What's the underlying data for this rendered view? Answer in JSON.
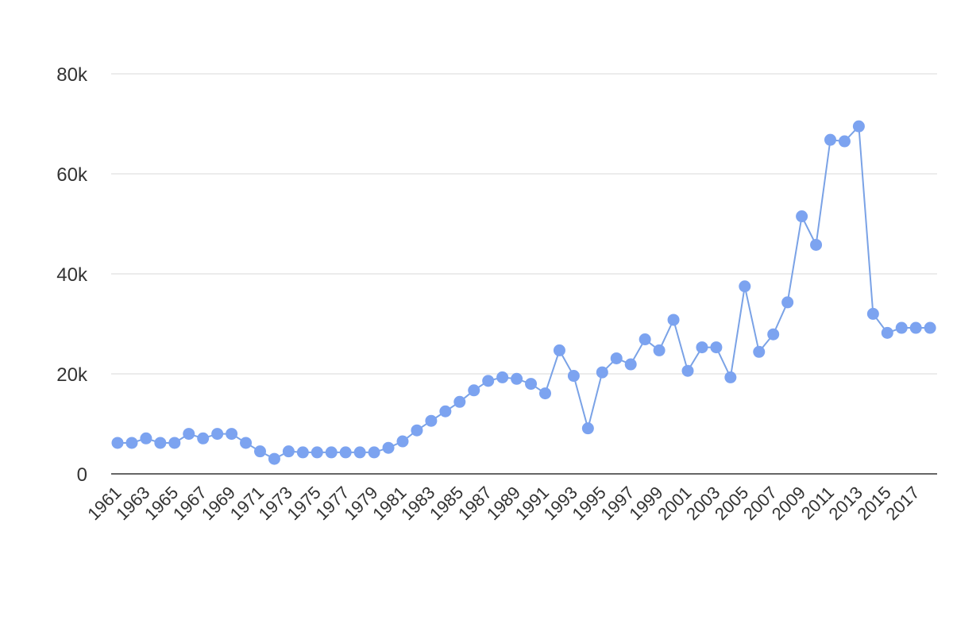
{
  "chart_data": {
    "type": "line",
    "title": "",
    "xlabel": "",
    "ylabel": "",
    "x": [
      1961,
      1962,
      1963,
      1964,
      1965,
      1966,
      1967,
      1968,
      1969,
      1970,
      1971,
      1972,
      1973,
      1974,
      1975,
      1976,
      1977,
      1978,
      1979,
      1980,
      1981,
      1982,
      1983,
      1984,
      1985,
      1986,
      1987,
      1988,
      1989,
      1990,
      1991,
      1992,
      1993,
      1994,
      1995,
      1996,
      1997,
      1998,
      1999,
      2000,
      2001,
      2002,
      2003,
      2004,
      2005,
      2006,
      2007,
      2008,
      2009,
      2010,
      2011,
      2012,
      2013,
      2014,
      2015,
      2016,
      2017,
      2018
    ],
    "x_tick_labels": [
      "1961",
      "1963",
      "1965",
      "1967",
      "1969",
      "1971",
      "1973",
      "1975",
      "1977",
      "1979",
      "1981",
      "1983",
      "1985",
      "1987",
      "1989",
      "1991",
      "1993",
      "1995",
      "1997",
      "1999",
      "2001",
      "2003",
      "2005",
      "2007",
      "2009",
      "2011",
      "2013",
      "2015",
      "2017"
    ],
    "y_tick_labels": [
      "0",
      "20k",
      "40k",
      "60k",
      "80k"
    ],
    "y_ticks": [
      0,
      20000,
      40000,
      60000,
      80000
    ],
    "ylim": [
      0,
      80000
    ],
    "grid": true,
    "series": [
      {
        "values": [
          6200,
          6200,
          7100,
          6200,
          6200,
          8000,
          7100,
          8000,
          8000,
          6200,
          4500,
          3000,
          4500,
          4300,
          4300,
          4300,
          4300,
          4300,
          4300,
          5200,
          6500,
          8700,
          10600,
          12500,
          14400,
          16700,
          18600,
          19300,
          19000,
          18000,
          16100,
          24700,
          19600,
          9100,
          20300,
          23100,
          21900,
          26900,
          24700,
          30800,
          20600,
          25300,
          25300,
          19300,
          37500,
          24400,
          27900,
          34300,
          51500,
          45800,
          66800,
          66500,
          69500,
          32000,
          28200,
          29200,
          29200,
          29200
        ],
        "color": "#7ca3f0"
      }
    ]
  }
}
